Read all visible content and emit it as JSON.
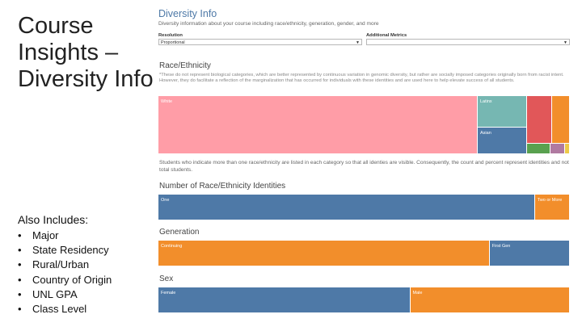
{
  "slide": {
    "title": "Course Insights – Diversity Info",
    "also_heading": "Also Includes:",
    "also_items": [
      "Major",
      "State Residency",
      "Rural/Urban",
      "Country of Origin",
      "UNL GPA",
      "Class Level"
    ]
  },
  "dashboard": {
    "title": "Diversity Info",
    "subtitle": "Diversity information about your course including race/ethnicity, generation, gender, and more",
    "resolution_label": "Resolution",
    "resolution_value": "Proportional",
    "metrics_label": "Additional Metrics",
    "metrics_value": "",
    "race_title": "Race/Ethnicity",
    "race_note": "*These do not represent biological categories, which are better represented by continuous variation in genomic diversity, but rather are socially imposed categories originally born from racist intent. However, they do facilitate a reflection of the marginalization that has occurred for individuals with these identities and are used here to help elevate success of all students.",
    "race_treemap": [
      {
        "label": "White",
        "color": "#ff9da7"
      },
      {
        "label": "Latinx",
        "color": "#76b7b2"
      },
      {
        "label": "Asian",
        "color": "#4e79a7"
      },
      {
        "label": "",
        "color": "#e15759"
      },
      {
        "label": "",
        "color": "#f28e2b"
      },
      {
        "label": "",
        "color": "#59a14f"
      },
      {
        "label": "",
        "color": "#b07aa1"
      },
      {
        "label": "",
        "color": "#edc948"
      }
    ],
    "multi_note": "Students who indicate more than one race/ethnicity are listed in each category so that all identies are visible. Consequently, the count and percent represent identities and not total students.",
    "num_identities": {
      "title": "Number of Race/Ethnicity Identities",
      "segments": [
        {
          "label": "One",
          "share": 91.5,
          "color": "#4e79a7"
        },
        {
          "label": "Two or More",
          "share": 8.5,
          "color": "#f28e2b"
        }
      ]
    },
    "generation": {
      "title": "Generation",
      "segments": [
        {
          "label": "Continuing",
          "share": 80.5,
          "color": "#f28e2b"
        },
        {
          "label": "First Gen",
          "share": 19.5,
          "color": "#4e79a7"
        }
      ]
    },
    "sex": {
      "title": "Sex",
      "segments": [
        {
          "label": "Female",
          "share": 61.2,
          "color": "#4e79a7"
        },
        {
          "label": "Male",
          "share": 38.8,
          "color": "#f28e2b"
        }
      ]
    }
  }
}
